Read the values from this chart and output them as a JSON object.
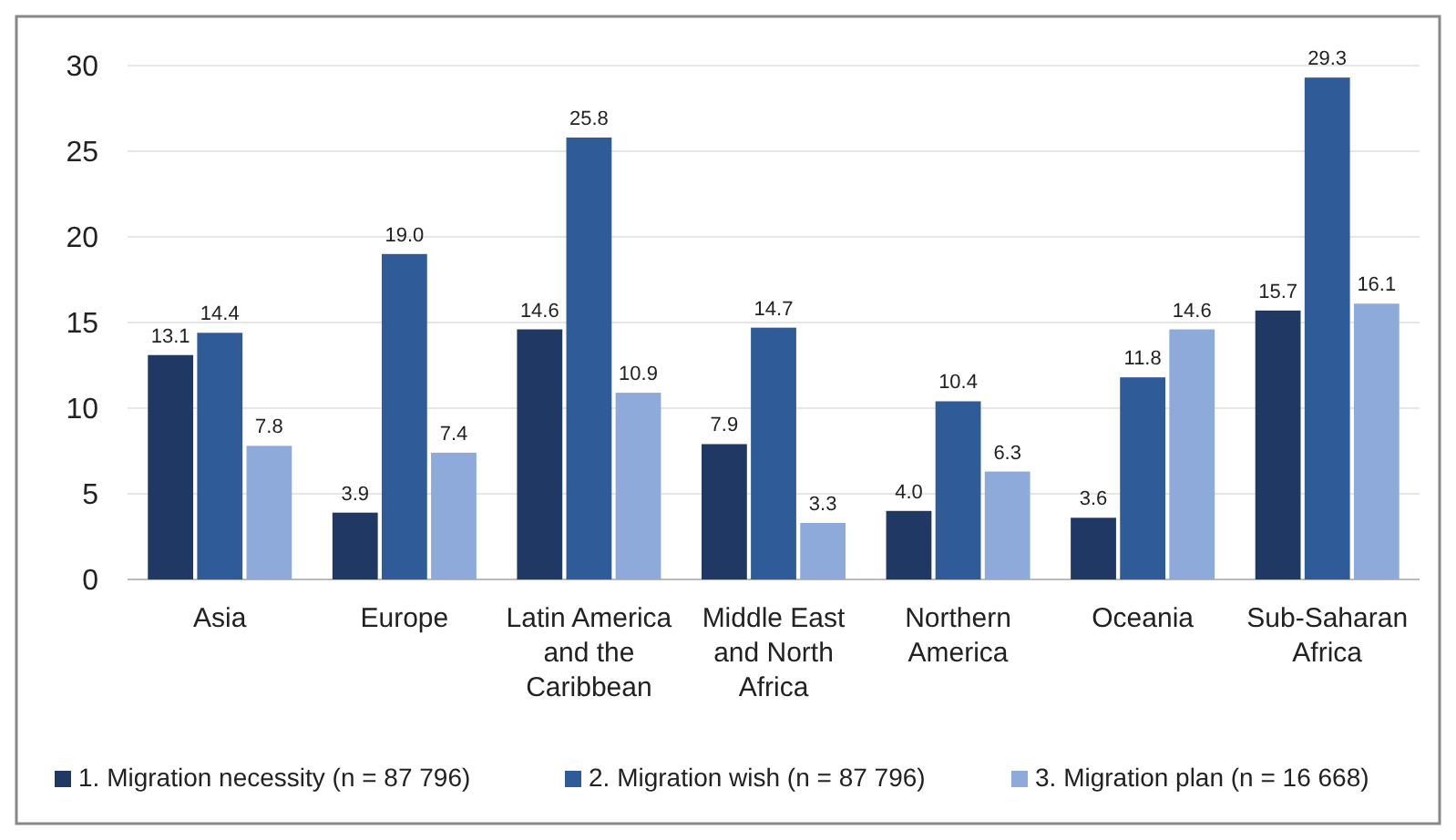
{
  "chart_data": {
    "type": "bar",
    "categories": [
      "Asia",
      "Europe",
      "Latin America and the Caribbean",
      "Middle East and North Africa",
      "Northern America",
      "Oceania",
      "Sub-Saharan Africa"
    ],
    "series": [
      {
        "name": "1. Migration necessity (n = 87 796)",
        "color": "#203864",
        "values": [
          13.1,
          3.9,
          14.6,
          7.9,
          4.0,
          3.6,
          15.7
        ],
        "value_labels": [
          "13.1",
          "3.9",
          "14.6",
          "7.9",
          "4.0",
          "3.6",
          "15.7"
        ]
      },
      {
        "name": "2. Migration wish (n = 87 796)",
        "color": "#2f5c99",
        "values": [
          14.4,
          19.0,
          25.8,
          14.7,
          10.4,
          11.8,
          29.3
        ],
        "value_labels": [
          "14.4",
          "19.0",
          "25.8",
          "14.7",
          "10.4",
          "11.8",
          "29.3"
        ]
      },
      {
        "name": "3. Migration plan (n = 16 668)",
        "color": "#8eaadb",
        "values": [
          7.8,
          7.4,
          10.9,
          3.3,
          6.3,
          14.6,
          16.1
        ],
        "value_labels": [
          "7.8",
          "7.4",
          "10.9",
          "3.3",
          "6.3",
          "14.6",
          "16.1"
        ]
      }
    ],
    "ylim": [
      0,
      30
    ],
    "yticks": [
      0,
      5,
      10,
      15,
      20,
      25,
      30
    ],
    "grid": "y",
    "legend": "bottom"
  }
}
